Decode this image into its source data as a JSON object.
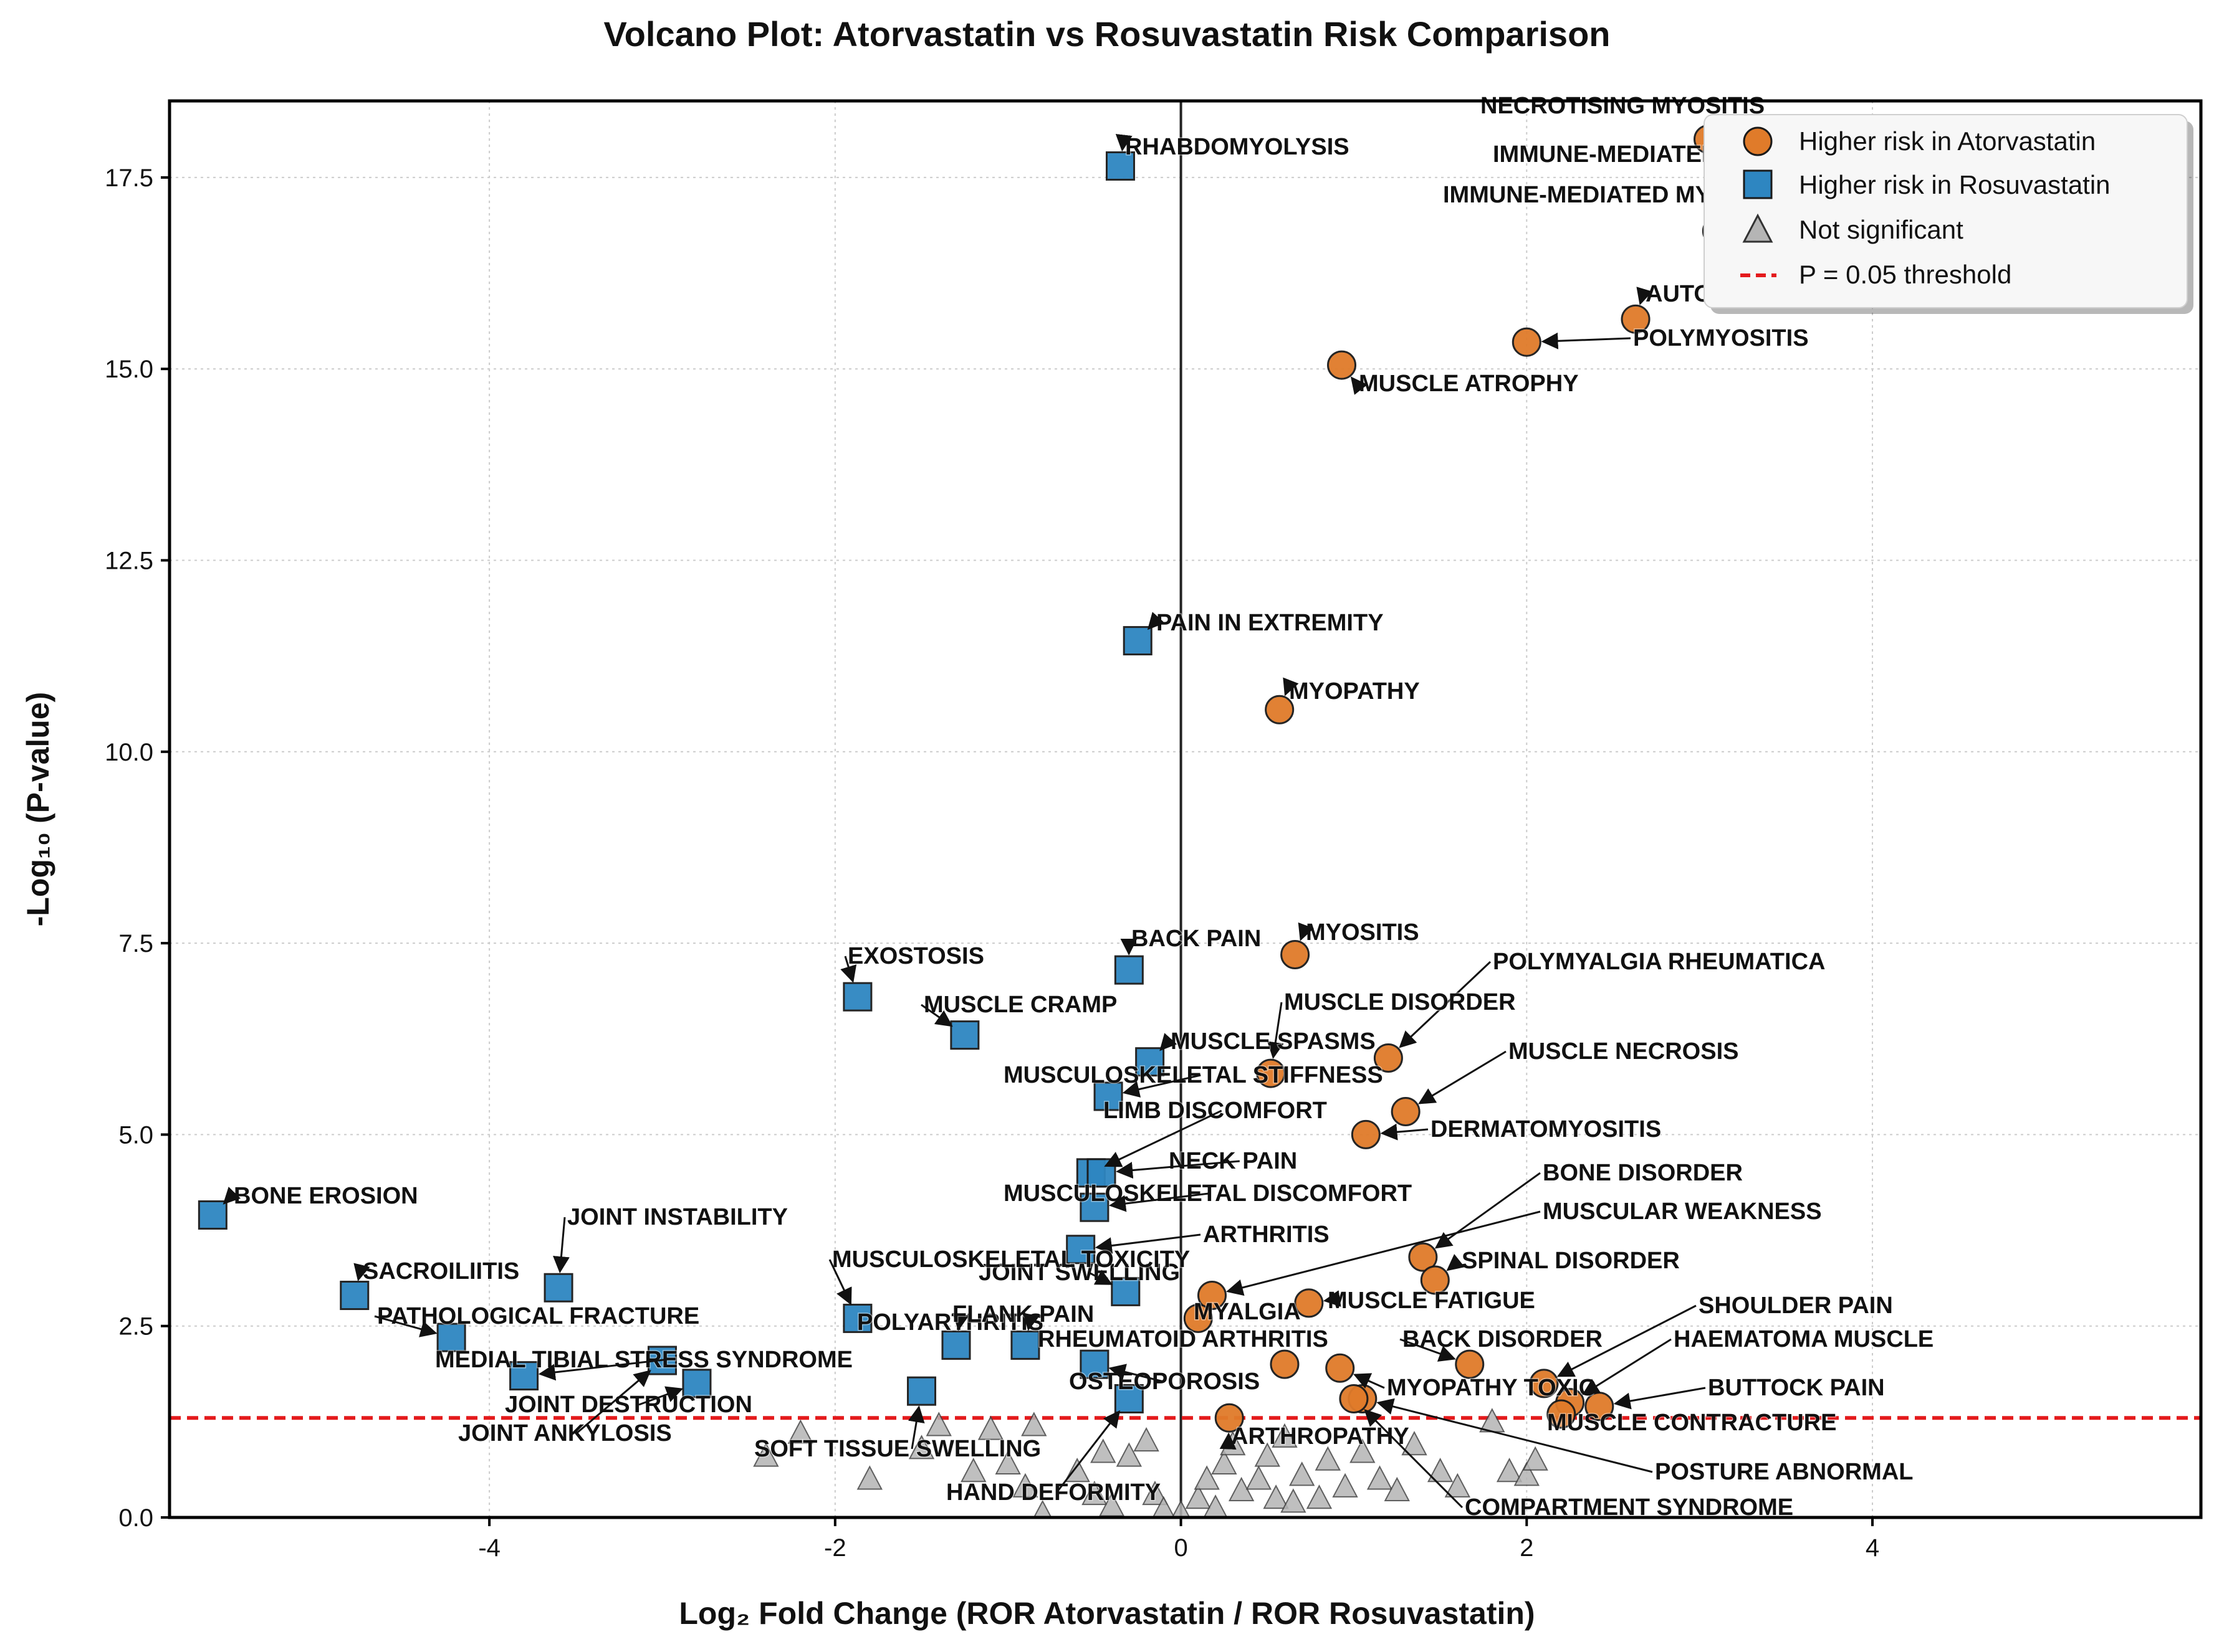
{
  "chart_data": {
    "type": "scatter",
    "title": "Volcano Plot: Atorvastatin vs Rosuvastatin Risk Comparison",
    "xlabel": "Log₂ Fold Change (ROR Atorvastatin / ROR Rosuvastatin)",
    "ylabel": "-Log₁₀ (P-value)",
    "xlim": [
      -5.85,
      5.9
    ],
    "ylim": [
      0,
      18.5
    ],
    "xticks": [
      -4,
      -2,
      0,
      2,
      4
    ],
    "xtick_labels": [
      "-4",
      "-2",
      "0",
      "2",
      "4"
    ],
    "yticks": [
      0.0,
      2.5,
      5.0,
      7.5,
      10.0,
      12.5,
      15.0,
      17.5
    ],
    "ytick_labels": [
      "0.0",
      "2.5",
      "5.0",
      "7.5",
      "10.0",
      "12.5",
      "15.0",
      "17.5"
    ],
    "grid": true,
    "vertical_line_x": 0,
    "threshold": {
      "y": 1.3,
      "label": "P = 0.05 threshold",
      "color": "#e41a1c"
    },
    "legend_position": "top-right",
    "colors": {
      "atorvastatin": "#e07b2a",
      "rosuvastatin": "#2e86c1",
      "not_significant": "#b5b5b5"
    },
    "series": [
      {
        "name": "Higher risk in Atorvastatin",
        "marker": "circle",
        "points": [
          {
            "x": 3.05,
            "y": 18.0,
            "label": "NECROTISING MYOSITIS"
          },
          {
            "x": 3.25,
            "y": 17.3,
            "label": "IMMUNE-MEDIATED NECROTISING MYOPATHY"
          },
          {
            "x": 3.1,
            "y": 16.8,
            "label": "IMMUNE-MEDIATED MYOSITIS"
          },
          {
            "x": 2.63,
            "y": 15.65,
            "label": "AUTOIMMUNE MYOSITIS"
          },
          {
            "x": 2.0,
            "y": 15.35,
            "label": "POLYMYOSITIS"
          },
          {
            "x": 0.93,
            "y": 15.05,
            "label": "MUSCLE ATROPHY"
          },
          {
            "x": 0.57,
            "y": 10.55,
            "label": "MYOPATHY"
          },
          {
            "x": 0.66,
            "y": 7.35,
            "label": "MYOSITIS"
          },
          {
            "x": 1.2,
            "y": 6.0,
            "label": "POLYMYALGIA RHEUMATICA"
          },
          {
            "x": 0.52,
            "y": 5.8,
            "label": "MUSCLE DISORDER"
          },
          {
            "x": 1.3,
            "y": 5.3,
            "label": "MUSCLE NECROSIS"
          },
          {
            "x": 1.07,
            "y": 5.0,
            "label": "DERMATOMYOSITIS"
          },
          {
            "x": 1.4,
            "y": 3.4,
            "label": "BONE DISORDER"
          },
          {
            "x": 0.18,
            "y": 2.9,
            "label": "MUSCULAR WEAKNESS"
          },
          {
            "x": 1.47,
            "y": 3.1,
            "label": "SPINAL DISORDER"
          },
          {
            "x": 0.74,
            "y": 2.8,
            "label": "MUSCLE FATIGUE"
          },
          {
            "x": 0.1,
            "y": 2.6,
            "label": "MYALGIA"
          },
          {
            "x": 1.67,
            "y": 2.0,
            "label": "BACK DISORDER"
          },
          {
            "x": 0.92,
            "y": 1.95,
            "label": "MYOPATHY TOXIC"
          },
          {
            "x": 2.1,
            "y": 1.75,
            "label": "SHOULDER PAIN"
          },
          {
            "x": 0.6,
            "y": 2.0,
            "label": "RHEUMATOID ARTHRITIS"
          },
          {
            "x": 2.25,
            "y": 1.5,
            "label": "HAEMATOMA MUSCLE"
          },
          {
            "x": 2.42,
            "y": 1.45,
            "label": "BUTTOCK PAIN"
          },
          {
            "x": 2.2,
            "y": 1.35,
            "label": "MUSCLE CONTRACTURE"
          },
          {
            "x": 1.05,
            "y": 1.55,
            "label": "POSTURE ABNORMAL"
          },
          {
            "x": 0.28,
            "y": 1.3,
            "label": "ARTHROPATHY"
          },
          {
            "x": 1.0,
            "y": 1.55,
            "label": "COMPARTMENT SYNDROME"
          }
        ]
      },
      {
        "name": "Higher risk in Rosuvastatin",
        "marker": "square",
        "points": [
          {
            "x": -0.35,
            "y": 17.65,
            "label": "RHABDOMYOLYSIS"
          },
          {
            "x": -0.25,
            "y": 11.45,
            "label": "PAIN IN EXTREMITY"
          },
          {
            "x": -1.87,
            "y": 6.8,
            "label": "EXOSTOSIS"
          },
          {
            "x": -0.3,
            "y": 7.15,
            "label": "BACK PAIN"
          },
          {
            "x": -1.25,
            "y": 6.3,
            "label": "MUSCLE CRAMP"
          },
          {
            "x": -0.18,
            "y": 5.95,
            "label": "MUSCLE SPASMS"
          },
          {
            "x": -0.42,
            "y": 5.5,
            "label": "MUSCULOSKELETAL STIFFNESS"
          },
          {
            "x": -0.52,
            "y": 4.5,
            "label": "LIMB DISCOMFORT"
          },
          {
            "x": -0.46,
            "y": 4.5,
            "label": "NECK PAIN"
          },
          {
            "x": -0.5,
            "y": 4.05,
            "label": "MUSCULOSKELETAL DISCOMFORT"
          },
          {
            "x": -5.6,
            "y": 3.95,
            "label": "BONE EROSION"
          },
          {
            "x": -0.58,
            "y": 3.5,
            "label": "ARTHRITIS"
          },
          {
            "x": -0.32,
            "y": 2.95,
            "label": "JOINT SWELLING"
          },
          {
            "x": -3.6,
            "y": 3.0,
            "label": "JOINT INSTABILITY"
          },
          {
            "x": -4.78,
            "y": 2.9,
            "label": "SACROILIITIS"
          },
          {
            "x": -1.87,
            "y": 2.6,
            "label": "MUSCULOSKELETAL TOXICITY"
          },
          {
            "x": -4.22,
            "y": 2.35,
            "label": "PATHOLOGICAL FRACTURE"
          },
          {
            "x": -1.3,
            "y": 2.25,
            "label": "POLYARTHRITIS"
          },
          {
            "x": -0.9,
            "y": 2.25,
            "label": "FLANK PAIN"
          },
          {
            "x": -0.5,
            "y": 2.0,
            "label": "OSTEOPOROSIS"
          },
          {
            "x": -3.8,
            "y": 1.85,
            "label": "MEDIAL TIBIAL STRESS SYNDROME"
          },
          {
            "x": -2.8,
            "y": 1.75,
            "label": "JOINT DESTRUCTION"
          },
          {
            "x": -3.0,
            "y": 2.05,
            "label": "JOINT ANKYLOSIS"
          },
          {
            "x": -1.5,
            "y": 1.65,
            "label": "SOFT TISSUE SWELLING"
          },
          {
            "x": -0.3,
            "y": 1.55,
            "label": "HAND DEFORMITY"
          }
        ]
      },
      {
        "name": "Not significant",
        "marker": "triangle",
        "points": [
          {
            "x": -2.4,
            "y": 0.8
          },
          {
            "x": -2.2,
            "y": 1.1
          },
          {
            "x": -1.8,
            "y": 0.5
          },
          {
            "x": -1.5,
            "y": 0.9
          },
          {
            "x": -1.4,
            "y": 1.2
          },
          {
            "x": -1.2,
            "y": 0.6
          },
          {
            "x": -1.1,
            "y": 1.15
          },
          {
            "x": -1.0,
            "y": 0.7
          },
          {
            "x": -0.9,
            "y": 0.4
          },
          {
            "x": -0.85,
            "y": 1.2
          },
          {
            "x": -0.8,
            "y": 0.05
          },
          {
            "x": -0.6,
            "y": 0.6
          },
          {
            "x": -0.5,
            "y": 0.3
          },
          {
            "x": -0.45,
            "y": 0.85
          },
          {
            "x": -0.4,
            "y": 0.15
          },
          {
            "x": -0.3,
            "y": 0.8
          },
          {
            "x": -0.2,
            "y": 1.0
          },
          {
            "x": -0.15,
            "y": 0.3
          },
          {
            "x": -0.1,
            "y": 0.1
          },
          {
            "x": 0.0,
            "y": 0.05
          },
          {
            "x": 0.1,
            "y": 0.25
          },
          {
            "x": 0.15,
            "y": 0.5
          },
          {
            "x": 0.2,
            "y": 0.12
          },
          {
            "x": 0.25,
            "y": 0.7
          },
          {
            "x": 0.3,
            "y": 0.95
          },
          {
            "x": 0.35,
            "y": 0.35
          },
          {
            "x": 0.45,
            "y": 0.5
          },
          {
            "x": 0.5,
            "y": 0.8
          },
          {
            "x": 0.55,
            "y": 0.25
          },
          {
            "x": 0.6,
            "y": 1.05
          },
          {
            "x": 0.65,
            "y": 0.2
          },
          {
            "x": 0.7,
            "y": 0.55
          },
          {
            "x": 0.8,
            "y": 0.25
          },
          {
            "x": 0.85,
            "y": 0.75
          },
          {
            "x": 0.95,
            "y": 0.4
          },
          {
            "x": 1.05,
            "y": 0.85
          },
          {
            "x": 1.15,
            "y": 0.5
          },
          {
            "x": 1.25,
            "y": 0.35
          },
          {
            "x": 1.35,
            "y": 0.95
          },
          {
            "x": 1.5,
            "y": 0.6
          },
          {
            "x": 1.6,
            "y": 0.4
          },
          {
            "x": 1.8,
            "y": 1.25
          },
          {
            "x": 1.9,
            "y": 0.6
          },
          {
            "x": 2.0,
            "y": 0.55
          },
          {
            "x": 2.05,
            "y": 0.75
          }
        ]
      }
    ]
  }
}
